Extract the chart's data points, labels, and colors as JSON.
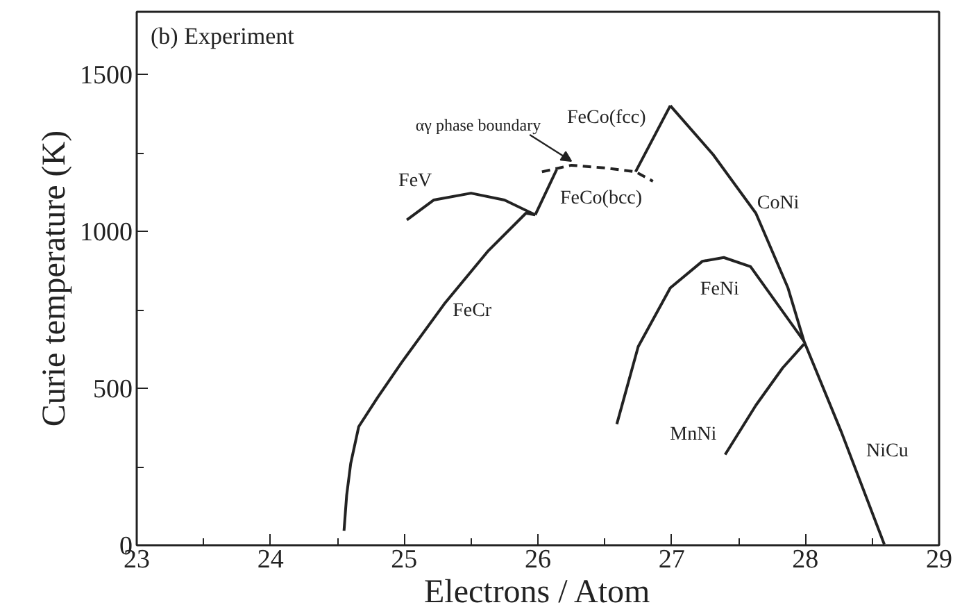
{
  "chart_data": {
    "type": "line",
    "title": "(b) Experiment",
    "xlabel": "Electrons / Atom",
    "ylabel": "Curie temperature (K)",
    "xlim": [
      23,
      29
    ],
    "ylim": [
      0,
      1700
    ],
    "xticks": [
      23,
      {
        "value": 23.5,
        "label": null
      },
      24,
      {
        "value": 24.5,
        "label": null
      },
      25,
      {
        "value": 25.5,
        "label": null
      },
      26,
      {
        "value": 26.5,
        "label": null
      },
      27,
      {
        "value": 27.5,
        "label": null
      },
      28,
      {
        "value": 28.5,
        "label": null
      },
      29
    ],
    "yticks": [
      0,
      {
        "value": 250,
        "label": null
      },
      500,
      {
        "value": 750,
        "label": null
      },
      1000,
      {
        "value": 1250,
        "label": null
      },
      1500
    ],
    "grid": false,
    "line_style": "solid",
    "series": [
      {
        "name": "FeCr",
        "color": "#222222",
        "x": [
          24.55,
          24.57,
          24.6,
          24.66,
          24.8,
          24.98,
          25.3,
          25.63,
          25.91,
          25.98
        ],
        "values": [
          46,
          160,
          260,
          378,
          470,
          582,
          769,
          939,
          1058,
          1053
        ]
      },
      {
        "name": "FeV",
        "color": "#222222",
        "x": [
          25.02,
          25.22,
          25.5,
          25.75,
          25.98
        ],
        "values": [
          1037,
          1100,
          1122,
          1100,
          1053
        ]
      },
      {
        "name": "FeCo(bcc)",
        "color": "#222222",
        "x": [
          25.98,
          26.14
        ],
        "values": [
          1053,
          1197
        ]
      },
      {
        "name": "αγ phase boundary",
        "color": "#222222",
        "line_style": "dashed",
        "x": [
          26.03,
          26.25,
          26.51,
          26.73,
          26.86
        ],
        "values": [
          1190,
          1211,
          1202,
          1190,
          1160
        ]
      },
      {
        "name": "FeCo(fcc)",
        "color": "#222222",
        "x": [
          26.73,
          26.99
        ],
        "values": [
          1190,
          1401
        ]
      },
      {
        "name": "CoNi",
        "color": "#222222",
        "x": [
          26.99,
          27.31,
          27.63,
          27.87,
          27.99,
          28.27,
          28.59
        ],
        "values": [
          1401,
          1245,
          1058,
          820,
          650,
          360,
          3
        ]
      },
      {
        "name": "FeNi",
        "color": "#222222",
        "x": [
          26.59,
          26.75,
          26.99,
          27.23,
          27.39,
          27.59,
          27.79,
          27.99
        ],
        "values": [
          386,
          633,
          820,
          905,
          917,
          888,
          769,
          650
        ]
      },
      {
        "name": "MnNi",
        "color": "#222222",
        "x": [
          27.4,
          27.63,
          27.83,
          27.99
        ],
        "values": [
          289,
          446,
          565,
          641
        ]
      }
    ],
    "annotations": [
      {
        "text": "NiCu",
        "x": 28.27,
        "y": 360
      }
    ]
  }
}
